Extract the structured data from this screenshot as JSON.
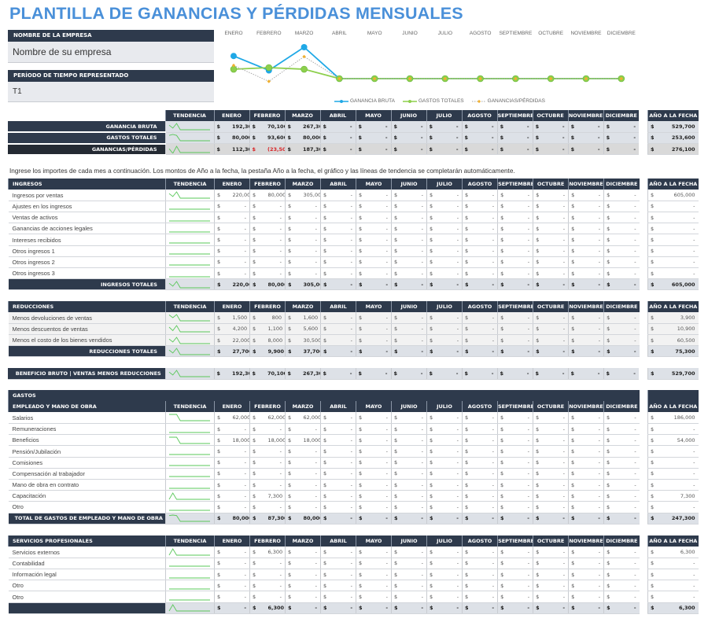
{
  "title": "PLANTILLA DE GANANCIAS Y PÉRDIDAS MENSUALES",
  "company": {
    "label": "NOMBRE DE LA EMPRESA",
    "value": "Nombre de su empresa"
  },
  "period": {
    "label": "PERÍODO DE TIEMPO REPRESENTADO",
    "value": "T1"
  },
  "months": [
    "ENERO",
    "FEBRERO",
    "MARZO",
    "ABRIL",
    "MAYO",
    "JUNIO",
    "JULIO",
    "AGOSTO",
    "SEPTIEMBRE",
    "OCTUBRE",
    "NOVIEMBRE",
    "DICIEMBRE"
  ],
  "headers": {
    "trend": "TENDENCIA",
    "ytd": "AÑO A LA FECHA"
  },
  "chart_data": {
    "type": "line",
    "categories": [
      "ENERO",
      "FEBRERO",
      "MARZO",
      "ABRIL",
      "MAYO",
      "JUNIO",
      "JULIO",
      "AGOSTO",
      "SEPTIEMBRE",
      "OCTUBRE",
      "NOVIEMBRE",
      "DICIEMBRE"
    ],
    "series": [
      {
        "name": "GANANCIA BRUTA",
        "color": "#1fa8e6",
        "values": [
          192300,
          70100,
          267300,
          0,
          0,
          0,
          0,
          0,
          0,
          0,
          0,
          0
        ]
      },
      {
        "name": "GASTOS TOTALES",
        "color": "#8dcf4c",
        "values": [
          80000,
          93600,
          80000,
          0,
          0,
          0,
          0,
          0,
          0,
          0,
          0,
          0
        ]
      },
      {
        "name": "GANANCIAS/PÉRDIDAS",
        "color": "#f0b030",
        "style": "dotted",
        "values": [
          112300,
          -23500,
          187300,
          0,
          0,
          0,
          0,
          0,
          0,
          0,
          0,
          0
        ]
      }
    ],
    "legend_position": "bottom",
    "grid": false,
    "title": "",
    "xlabel": "",
    "ylabel": ""
  },
  "legend": [
    "GANANCIA BRUTA",
    "GASTOS TOTALES",
    "GANANCIAS/PÉRDIDAS"
  ],
  "summary": {
    "rows": [
      {
        "label": "GANANCIA BRUTA",
        "values": [
          "192,300",
          "70,100",
          "267,300",
          "-",
          "-",
          "-",
          "-",
          "-",
          "-",
          "-",
          "-",
          "-"
        ],
        "ytd": "529,700"
      },
      {
        "label": "GASTOS TOTALES",
        "values": [
          "80,000",
          "93,600",
          "80,000",
          "-",
          "-",
          "-",
          "-",
          "-",
          "-",
          "-",
          "-",
          "-"
        ],
        "ytd": "253,600"
      },
      {
        "label": "GANANCIAS/PÉRDIDAS",
        "values": [
          "112,300",
          "(23,500)",
          "187,300",
          "-",
          "-",
          "-",
          "-",
          "-",
          "-",
          "-",
          "-",
          "-"
        ],
        "ytd": "276,100"
      }
    ]
  },
  "note": "Ingrese los importes de cada mes a continuación. Los montos de Año a la fecha, la pestaña Año a la fecha, el gráfico y las líneas de tendencia se completarán automáticamente.",
  "ingresos": {
    "header": "INGRESOS",
    "rows": [
      {
        "label": "Ingresos por ventas",
        "values": [
          "220,000",
          "80,000",
          "305,000",
          "-",
          "-",
          "-",
          "-",
          "-",
          "-",
          "-",
          "-",
          "-"
        ],
        "ytd": "605,000"
      },
      {
        "label": "Ajustes en los ingresos",
        "values": [
          "-",
          "-",
          "-",
          "-",
          "-",
          "-",
          "-",
          "-",
          "-",
          "-",
          "-",
          "-"
        ],
        "ytd": "-"
      },
      {
        "label": "Ventas de activos",
        "values": [
          "-",
          "-",
          "-",
          "-",
          "-",
          "-",
          "-",
          "-",
          "-",
          "-",
          "-",
          "-"
        ],
        "ytd": "-"
      },
      {
        "label": "Ganancias de acciones legales",
        "values": [
          "-",
          "-",
          "-",
          "-",
          "-",
          "-",
          "-",
          "-",
          "-",
          "-",
          "-",
          "-"
        ],
        "ytd": "-"
      },
      {
        "label": "Intereses recibidos",
        "values": [
          "-",
          "-",
          "-",
          "-",
          "-",
          "-",
          "-",
          "-",
          "-",
          "-",
          "-",
          "-"
        ],
        "ytd": "-"
      },
      {
        "label": "Otros ingresos 1",
        "values": [
          "-",
          "-",
          "-",
          "-",
          "-",
          "-",
          "-",
          "-",
          "-",
          "-",
          "-",
          "-"
        ],
        "ytd": "-"
      },
      {
        "label": "Otros ingresos 2",
        "values": [
          "-",
          "-",
          "-",
          "-",
          "-",
          "-",
          "-",
          "-",
          "-",
          "-",
          "-",
          "-"
        ],
        "ytd": "-"
      },
      {
        "label": "Otros ingresos 3",
        "values": [
          "-",
          "-",
          "-",
          "-",
          "-",
          "-",
          "-",
          "-",
          "-",
          "-",
          "-",
          "-"
        ],
        "ytd": "-"
      }
    ],
    "total": {
      "label": "INGRESOS TOTALES",
      "values": [
        "220,000",
        "80,000",
        "305,000",
        "-",
        "-",
        "-",
        "-",
        "-",
        "-",
        "-",
        "-",
        "-"
      ],
      "ytd": "605,000"
    }
  },
  "reducciones": {
    "header": "REDUCCIONES",
    "rows": [
      {
        "label": "Menos devoluciones de ventas",
        "values": [
          "1,500",
          "800",
          "1,600",
          "-",
          "-",
          "-",
          "-",
          "-",
          "-",
          "-",
          "-",
          "-"
        ],
        "ytd": "3,900"
      },
      {
        "label": "Menos descuentos de ventas",
        "values": [
          "4,200",
          "1,100",
          "5,600",
          "-",
          "-",
          "-",
          "-",
          "-",
          "-",
          "-",
          "-",
          "-"
        ],
        "ytd": "10,900"
      },
      {
        "label": "Menos el costo de los bienes vendidos",
        "values": [
          "22,000",
          "8,000",
          "30,500",
          "-",
          "-",
          "-",
          "-",
          "-",
          "-",
          "-",
          "-",
          "-"
        ],
        "ytd": "60,500"
      }
    ],
    "total": {
      "label": "REDUCCIONES TOTALES",
      "values": [
        "27,700",
        "9,900",
        "37,700",
        "-",
        "-",
        "-",
        "-",
        "-",
        "-",
        "-",
        "-",
        "-"
      ],
      "ytd": "75,300"
    }
  },
  "beneficio": {
    "label": "BENEFICIO BRUTO | VENTAS MENOS REDUCCIONES",
    "values": [
      "192,300",
      "70,100",
      "267,300",
      "-",
      "-",
      "-",
      "-",
      "-",
      "-",
      "-",
      "-",
      "-"
    ],
    "ytd": "529,700"
  },
  "gastos": {
    "section": "GASTOS",
    "header": "EMPLEADO Y MANO DE OBRA",
    "rows": [
      {
        "label": "Salarios",
        "values": [
          "62,000",
          "62,000",
          "62,000",
          "-",
          "-",
          "-",
          "-",
          "-",
          "-",
          "-",
          "-",
          "-"
        ],
        "ytd": "186,000"
      },
      {
        "label": "Remuneraciones",
        "values": [
          "-",
          "-",
          "-",
          "-",
          "-",
          "-",
          "-",
          "-",
          "-",
          "-",
          "-",
          "-"
        ],
        "ytd": "-"
      },
      {
        "label": "Beneficios",
        "values": [
          "18,000",
          "18,000",
          "18,000",
          "-",
          "-",
          "-",
          "-",
          "-",
          "-",
          "-",
          "-",
          "-"
        ],
        "ytd": "54,000"
      },
      {
        "label": "Pensión/Jubilación",
        "values": [
          "-",
          "-",
          "-",
          "-",
          "-",
          "-",
          "-",
          "-",
          "-",
          "-",
          "-",
          "-"
        ],
        "ytd": "-"
      },
      {
        "label": "Comisiones",
        "values": [
          "-",
          "-",
          "-",
          "-",
          "-",
          "-",
          "-",
          "-",
          "-",
          "-",
          "-",
          "-"
        ],
        "ytd": "-"
      },
      {
        "label": "Compensación al trabajador",
        "values": [
          "-",
          "-",
          "-",
          "-",
          "-",
          "-",
          "-",
          "-",
          "-",
          "-",
          "-",
          "-"
        ],
        "ytd": "-"
      },
      {
        "label": "Mano de obra en contrato",
        "values": [
          "-",
          "-",
          "-",
          "-",
          "-",
          "-",
          "-",
          "-",
          "-",
          "-",
          "-",
          "-"
        ],
        "ytd": "-"
      },
      {
        "label": "Capacitación",
        "values": [
          "-",
          "7,300",
          "-",
          "-",
          "-",
          "-",
          "-",
          "-",
          "-",
          "-",
          "-",
          "-"
        ],
        "ytd": "7,300"
      },
      {
        "label": "Otro",
        "values": [
          "-",
          "-",
          "-",
          "-",
          "-",
          "-",
          "-",
          "-",
          "-",
          "-",
          "-",
          "-"
        ],
        "ytd": "-"
      }
    ],
    "total": {
      "label": "TOTAL DE GASTOS DE EMPLEADO Y MANO DE OBRA",
      "values": [
        "80,000",
        "87,300",
        "80,000",
        "-",
        "-",
        "-",
        "-",
        "-",
        "-",
        "-",
        "-",
        "-"
      ],
      "ytd": "247,300"
    }
  },
  "servicios": {
    "header": "SERVICIOS PROFESIONALES",
    "rows": [
      {
        "label": "Servicios externos",
        "values": [
          "-",
          "6,300",
          "-",
          "-",
          "-",
          "-",
          "-",
          "-",
          "-",
          "-",
          "-",
          "-"
        ],
        "ytd": "6,300"
      },
      {
        "label": "Contabilidad",
        "values": [
          "-",
          "-",
          "-",
          "-",
          "-",
          "-",
          "-",
          "-",
          "-",
          "-",
          "-",
          "-"
        ],
        "ytd": "-"
      },
      {
        "label": "Información legal",
        "values": [
          "-",
          "-",
          "-",
          "-",
          "-",
          "-",
          "-",
          "-",
          "-",
          "-",
          "-",
          "-"
        ],
        "ytd": "-"
      },
      {
        "label": "Otro",
        "values": [
          "-",
          "-",
          "-",
          "-",
          "-",
          "-",
          "-",
          "-",
          "-",
          "-",
          "-",
          "-"
        ],
        "ytd": "-"
      },
      {
        "label": "Otro",
        "values": [
          "-",
          "-",
          "-",
          "-",
          "-",
          "-",
          "-",
          "-",
          "-",
          "-",
          "-",
          "-"
        ],
        "ytd": "-"
      }
    ],
    "total": {
      "label": "",
      "values": [
        "-",
        "6,300",
        "-",
        "-",
        "-",
        "-",
        "-",
        "-",
        "-",
        "-",
        "-",
        "-"
      ],
      "ytd": "6,300"
    }
  },
  "currency": "$"
}
